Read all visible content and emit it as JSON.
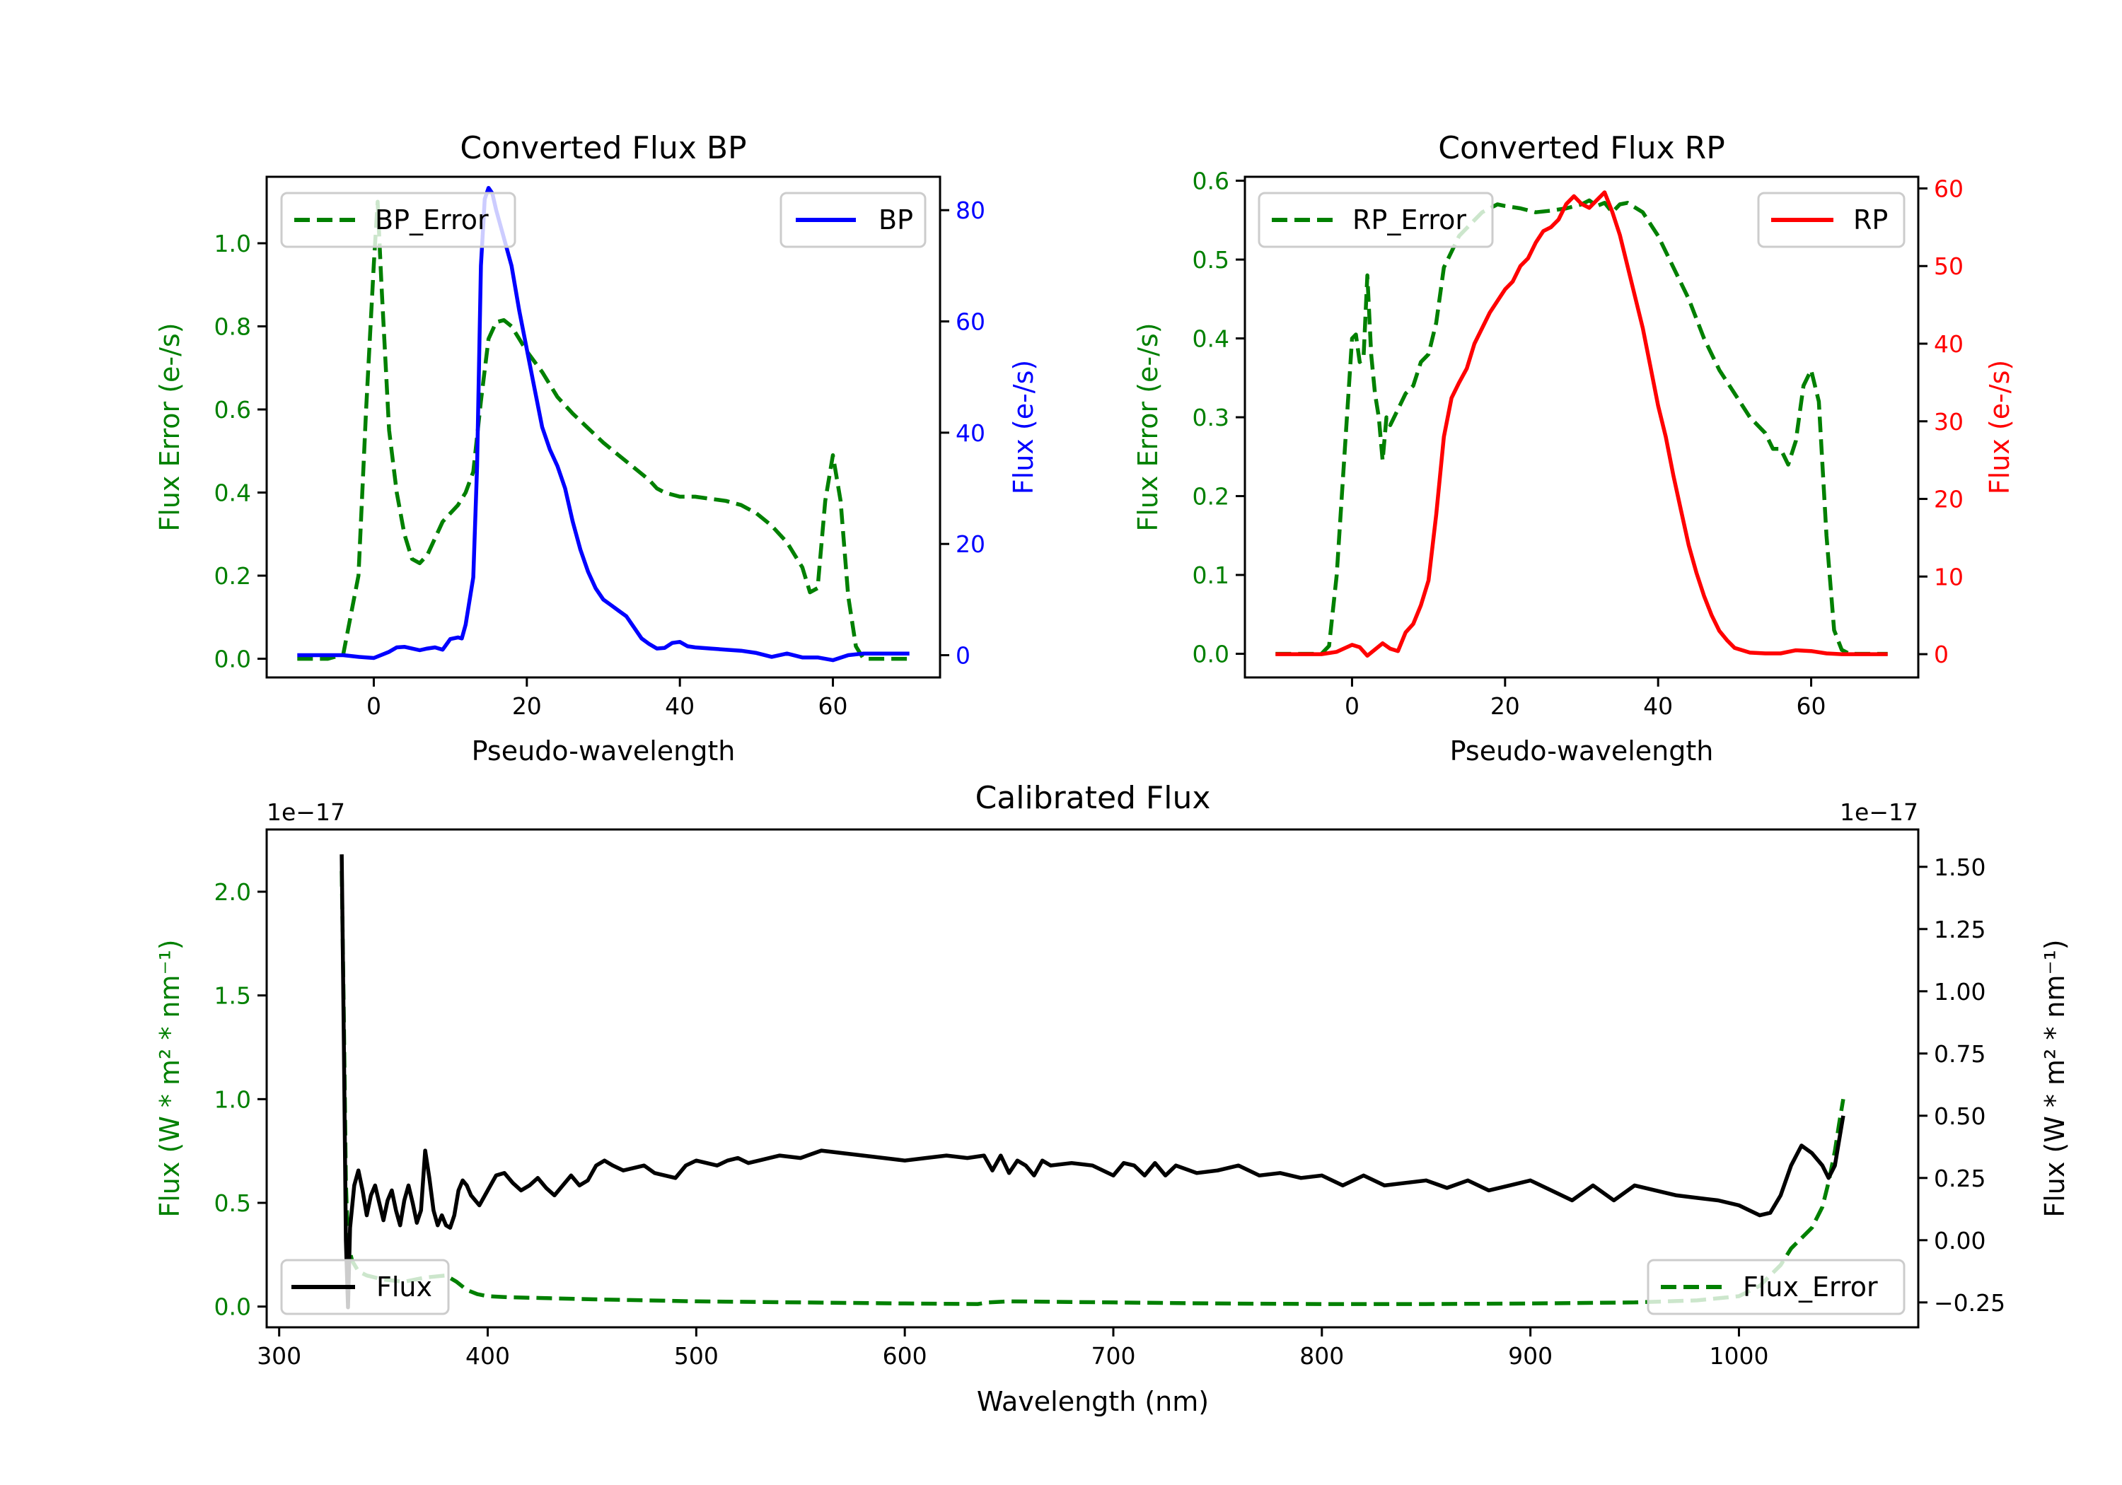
{
  "chart_data": [
    {
      "id": "bp",
      "type": "line",
      "title": "Converted Flux BP",
      "xlabel": "Pseudo-wavelength",
      "ylabel_left": "Flux Error (e-/s)",
      "ylabel_right": "Flux (e-/s)",
      "xlim": [
        -14,
        74
      ],
      "ylim_left": [
        -0.045,
        1.16
      ],
      "ylim_right": [
        -4,
        86
      ],
      "xticks": [
        "0",
        "20",
        "40",
        "60"
      ],
      "xtick_values": [
        0,
        20,
        40,
        60
      ],
      "yticks_left": [
        "0.0",
        "0.2",
        "0.4",
        "0.6",
        "0.8",
        "1.0"
      ],
      "ytick_values_left": [
        0,
        0.2,
        0.4,
        0.6,
        0.8,
        1.0
      ],
      "yticks_right": [
        "0",
        "20",
        "40",
        "60",
        "80"
      ],
      "ytick_values_right": [
        0,
        20,
        40,
        60,
        80
      ],
      "left_color": "#008000",
      "right_color": "#0000ff",
      "legend_left": {
        "label": "BP_Error",
        "placement": "upper-left"
      },
      "legend_right": {
        "label": "BP",
        "placement": "upper-right"
      },
      "series": [
        {
          "name": "BP_Error",
          "axis": "left",
          "style": "dashed",
          "color": "#008000",
          "x": [
            -10,
            -6,
            -4,
            -2,
            -1,
            0,
            0.5,
            1,
            2,
            3,
            4,
            5,
            6,
            7,
            8,
            9,
            10,
            11,
            12,
            13,
            14,
            15,
            16,
            17,
            18,
            19,
            20,
            22,
            24,
            26,
            28,
            30,
            32,
            34,
            36,
            37,
            38,
            40,
            42,
            44,
            46,
            48,
            50,
            52,
            54,
            56,
            57,
            58,
            59,
            60,
            61,
            62,
            63,
            64,
            66,
            70
          ],
          "y": [
            0,
            0,
            0.01,
            0.2,
            0.6,
            0.95,
            1.1,
            0.9,
            0.55,
            0.4,
            0.3,
            0.24,
            0.23,
            0.25,
            0.29,
            0.33,
            0.35,
            0.37,
            0.4,
            0.45,
            0.62,
            0.77,
            0.81,
            0.815,
            0.8,
            0.77,
            0.74,
            0.69,
            0.63,
            0.59,
            0.555,
            0.52,
            0.49,
            0.46,
            0.43,
            0.41,
            0.4,
            0.39,
            0.39,
            0.385,
            0.38,
            0.37,
            0.35,
            0.32,
            0.28,
            0.22,
            0.16,
            0.17,
            0.38,
            0.49,
            0.38,
            0.15,
            0.03,
            0,
            0,
            0
          ]
        },
        {
          "name": "BP",
          "axis": "right",
          "style": "solid",
          "color": "#0000ff",
          "x": [
            -10,
            -6,
            -4,
            -2,
            0,
            2,
            3,
            4,
            6,
            7,
            8,
            9,
            10,
            11,
            11.5,
            12,
            13,
            13.5,
            14,
            14.5,
            15,
            15.5,
            16,
            17,
            18,
            19,
            20,
            21,
            22,
            23,
            24,
            25,
            26,
            27,
            28,
            29,
            30,
            31,
            32,
            33,
            34,
            35,
            36,
            37,
            38,
            39,
            40,
            41,
            42,
            44,
            46,
            48,
            50,
            52,
            54,
            56,
            58,
            60,
            62,
            64,
            66,
            70
          ],
          "y": [
            0,
            0,
            0,
            -0.3,
            -0.5,
            0.6,
            1.4,
            1.5,
            0.9,
            1.2,
            1.4,
            1.0,
            2.9,
            3.2,
            3.0,
            5.5,
            14,
            34,
            70,
            82,
            84,
            83,
            80,
            75,
            70,
            62,
            55,
            48,
            41,
            37,
            34,
            30,
            24,
            19,
            15,
            12,
            10,
            9,
            8,
            7,
            5,
            3,
            2,
            1.2,
            1.3,
            2.2,
            2.4,
            1.6,
            1.4,
            1.2,
            1.0,
            0.8,
            0.4,
            -0.3,
            0.3,
            -0.4,
            -0.4,
            -0.9,
            0,
            0.3,
            0.3,
            0.3
          ]
        }
      ]
    },
    {
      "id": "rp",
      "type": "line",
      "title": "Converted Flux RP",
      "xlabel": "Pseudo-wavelength",
      "ylabel_left": "Flux Error (e-/s)",
      "ylabel_right": "Flux (e-/s)",
      "xlim": [
        -14,
        74
      ],
      "ylim_left": [
        -0.03,
        0.605
      ],
      "ylim_right": [
        -3,
        61.5
      ],
      "xticks": [
        "0",
        "20",
        "40",
        "60"
      ],
      "xtick_values": [
        0,
        20,
        40,
        60
      ],
      "yticks_left": [
        "0.0",
        "0.1",
        "0.2",
        "0.3",
        "0.4",
        "0.5",
        "0.6"
      ],
      "ytick_values_left": [
        0,
        0.1,
        0.2,
        0.3,
        0.4,
        0.5,
        0.6
      ],
      "yticks_right": [
        "0",
        "10",
        "20",
        "30",
        "40",
        "50",
        "60"
      ],
      "ytick_values_right": [
        0,
        10,
        20,
        30,
        40,
        50,
        60
      ],
      "left_color": "#008000",
      "right_color": "#ff0000",
      "legend_left": {
        "label": "RP_Error",
        "placement": "upper-left"
      },
      "legend_right": {
        "label": "RP",
        "placement": "upper-right"
      },
      "series": [
        {
          "name": "RP_Error",
          "axis": "left",
          "style": "dashed",
          "color": "#008000",
          "x": [
            -10,
            -4,
            -3,
            -2,
            -1,
            0,
            0.5,
            1,
            1.5,
            2,
            2.5,
            3,
            3.5,
            4,
            4.5,
            5,
            6,
            7,
            8,
            9,
            10,
            11,
            12,
            13,
            14,
            15,
            16,
            17,
            18,
            19,
            20,
            22,
            24,
            26,
            28,
            30,
            31,
            32,
            33,
            34,
            35,
            36,
            38,
            40,
            42,
            44,
            46,
            48,
            50,
            52,
            54,
            55,
            56,
            57,
            58,
            59,
            60,
            61,
            62,
            63,
            64,
            65,
            70
          ],
          "y": [
            0,
            0,
            0.01,
            0.1,
            0.25,
            0.4,
            0.405,
            0.37,
            0.375,
            0.48,
            0.38,
            0.33,
            0.3,
            0.245,
            0.3,
            0.29,
            0.31,
            0.33,
            0.34,
            0.37,
            0.38,
            0.42,
            0.49,
            0.51,
            0.53,
            0.54,
            0.55,
            0.56,
            0.565,
            0.57,
            0.568,
            0.565,
            0.56,
            0.562,
            0.565,
            0.57,
            0.575,
            0.568,
            0.572,
            0.56,
            0.57,
            0.572,
            0.56,
            0.53,
            0.49,
            0.45,
            0.4,
            0.36,
            0.33,
            0.3,
            0.28,
            0.26,
            0.26,
            0.24,
            0.27,
            0.34,
            0.36,
            0.32,
            0.15,
            0.03,
            0.005,
            0,
            0
          ]
        },
        {
          "name": "RP",
          "axis": "right",
          "style": "solid",
          "color": "#ff0000",
          "x": [
            -10,
            -4,
            -2,
            0,
            1,
            2,
            3,
            4,
            5,
            6,
            7,
            8,
            9,
            10,
            11,
            12,
            13,
            14,
            15,
            16,
            17,
            18,
            19,
            20,
            21,
            22,
            23,
            24,
            25,
            26,
            27,
            28,
            29,
            30,
            31,
            32,
            33,
            34,
            35,
            36,
            37,
            38,
            39,
            40,
            41,
            42,
            43,
            44,
            45,
            46,
            47,
            48,
            49,
            50,
            52,
            54,
            56,
            58,
            60,
            62,
            64,
            66,
            70
          ],
          "y": [
            0,
            0,
            0.3,
            1.2,
            0.9,
            -0.2,
            0.6,
            1.4,
            0.7,
            0.4,
            2.8,
            3.9,
            6.3,
            9.5,
            18,
            28,
            33,
            35,
            36.8,
            40,
            42,
            44,
            45.5,
            47,
            48,
            50,
            51,
            53,
            54.5,
            55,
            56,
            58,
            59,
            58,
            57.5,
            58.5,
            59.5,
            57,
            54,
            50,
            46,
            42,
            37,
            32,
            28,
            23,
            18.5,
            14,
            10.5,
            7.5,
            5,
            3,
            1.8,
            0.8,
            0.2,
            0.1,
            0.1,
            0.5,
            0.4,
            0.1,
            0,
            0,
            0
          ]
        }
      ]
    },
    {
      "id": "calibrated",
      "type": "line",
      "title": "Calibrated Flux",
      "xlabel": "Wavelength (nm)",
      "ylabel_left": "Flux (W * m² * nm⁻¹)",
      "ylabel_right": "Flux (W * m² * nm⁻¹)",
      "offset_left": "1e−17",
      "offset_right": "1e−17",
      "xlim": [
        294,
        1086
      ],
      "ylim_left": [
        -0.1,
        2.3
      ],
      "ylim_right": [
        -0.35,
        1.65
      ],
      "xticks": [
        "300",
        "400",
        "500",
        "600",
        "700",
        "800",
        "900",
        "1000"
      ],
      "xtick_values": [
        300,
        400,
        500,
        600,
        700,
        800,
        900,
        1000
      ],
      "yticks_left": [
        "0.0",
        "0.5",
        "1.0",
        "1.5",
        "2.0"
      ],
      "ytick_values_left": [
        0,
        0.5,
        1.0,
        1.5,
        2.0
      ],
      "yticks_right": [
        "−0.25",
        "0.00",
        "0.25",
        "0.50",
        "0.75",
        "1.00",
        "1.25",
        "1.50"
      ],
      "ytick_values_right": [
        -0.25,
        0,
        0.25,
        0.5,
        0.75,
        1.0,
        1.25,
        1.5
      ],
      "left_color": "#008000",
      "right_color": "#000000",
      "legend_left": {
        "label": "Flux",
        "placement": "lower-left"
      },
      "legend_right": {
        "label": "Flux_Error",
        "placement": "lower-right"
      },
      "series": [
        {
          "name": "Flux_Error",
          "axis": "left",
          "style": "dashed",
          "color": "#008000",
          "x": [
            330,
            331,
            332,
            333,
            335,
            338,
            342,
            350,
            360,
            370,
            380,
            385,
            390,
            395,
            400,
            410,
            430,
            450,
            500,
            550,
            600,
            635,
            640,
            650,
            700,
            750,
            800,
            850,
            900,
            950,
            980,
            1000,
            1010,
            1020,
            1025,
            1030,
            1035,
            1040,
            1043,
            1046,
            1048,
            1050
          ],
          "y": [
            2.1,
            1.4,
            0.6,
            0.3,
            0.22,
            0.17,
            0.15,
            0.13,
            0.12,
            0.14,
            0.15,
            0.12,
            0.08,
            0.06,
            0.05,
            0.045,
            0.04,
            0.035,
            0.025,
            0.02,
            0.015,
            0.012,
            0.02,
            0.025,
            0.02,
            0.015,
            0.012,
            0.012,
            0.015,
            0.02,
            0.03,
            0.05,
            0.1,
            0.2,
            0.28,
            0.33,
            0.38,
            0.48,
            0.6,
            0.75,
            0.88,
            1.0
          ]
        },
        {
          "name": "Flux",
          "axis": "right",
          "style": "solid",
          "color": "#000000",
          "x": [
            330,
            331,
            332,
            333,
            334,
            336,
            338,
            340,
            342,
            344,
            346,
            348,
            350,
            352,
            354,
            356,
            358,
            360,
            362,
            364,
            366,
            368,
            370,
            372,
            374,
            376,
            378,
            380,
            382,
            384,
            386,
            388,
            390,
            392,
            396,
            400,
            404,
            408,
            412,
            416,
            420,
            424,
            428,
            432,
            436,
            440,
            444,
            448,
            452,
            456,
            460,
            465,
            470,
            475,
            480,
            485,
            490,
            495,
            500,
            505,
            510,
            515,
            520,
            525,
            530,
            540,
            550,
            560,
            570,
            580,
            590,
            600,
            610,
            620,
            630,
            638,
            642,
            646,
            650,
            654,
            658,
            662,
            666,
            670,
            680,
            690,
            700,
            705,
            710,
            715,
            720,
            725,
            730,
            740,
            750,
            760,
            770,
            780,
            790,
            800,
            810,
            820,
            830,
            840,
            850,
            860,
            870,
            880,
            890,
            900,
            910,
            920,
            930,
            940,
            950,
            960,
            970,
            980,
            990,
            1000,
            1005,
            1010,
            1015,
            1020,
            1025,
            1030,
            1035,
            1040,
            1043,
            1046,
            1050
          ],
          "y": [
            1.55,
            0.8,
            0.0,
            -0.27,
            0.05,
            0.22,
            0.28,
            0.2,
            0.1,
            0.18,
            0.22,
            0.15,
            0.08,
            0.16,
            0.2,
            0.12,
            0.06,
            0.16,
            0.22,
            0.15,
            0.07,
            0.12,
            0.36,
            0.25,
            0.12,
            0.06,
            0.1,
            0.06,
            0.05,
            0.1,
            0.2,
            0.24,
            0.22,
            0.18,
            0.14,
            0.2,
            0.26,
            0.27,
            0.23,
            0.2,
            0.22,
            0.25,
            0.21,
            0.18,
            0.22,
            0.26,
            0.22,
            0.24,
            0.3,
            0.32,
            0.3,
            0.28,
            0.29,
            0.3,
            0.27,
            0.26,
            0.25,
            0.3,
            0.32,
            0.31,
            0.3,
            0.32,
            0.33,
            0.31,
            0.32,
            0.34,
            0.33,
            0.36,
            0.35,
            0.34,
            0.33,
            0.32,
            0.33,
            0.34,
            0.33,
            0.34,
            0.28,
            0.34,
            0.27,
            0.32,
            0.3,
            0.26,
            0.32,
            0.3,
            0.31,
            0.3,
            0.26,
            0.31,
            0.3,
            0.26,
            0.31,
            0.26,
            0.3,
            0.27,
            0.28,
            0.3,
            0.26,
            0.27,
            0.25,
            0.26,
            0.22,
            0.26,
            0.22,
            0.23,
            0.24,
            0.21,
            0.24,
            0.2,
            0.22,
            0.24,
            0.2,
            0.16,
            0.22,
            0.16,
            0.22,
            0.2,
            0.18,
            0.17,
            0.16,
            0.14,
            0.12,
            0.1,
            0.11,
            0.18,
            0.3,
            0.38,
            0.35,
            0.3,
            0.25,
            0.3,
            0.5
          ]
        }
      ]
    }
  ]
}
